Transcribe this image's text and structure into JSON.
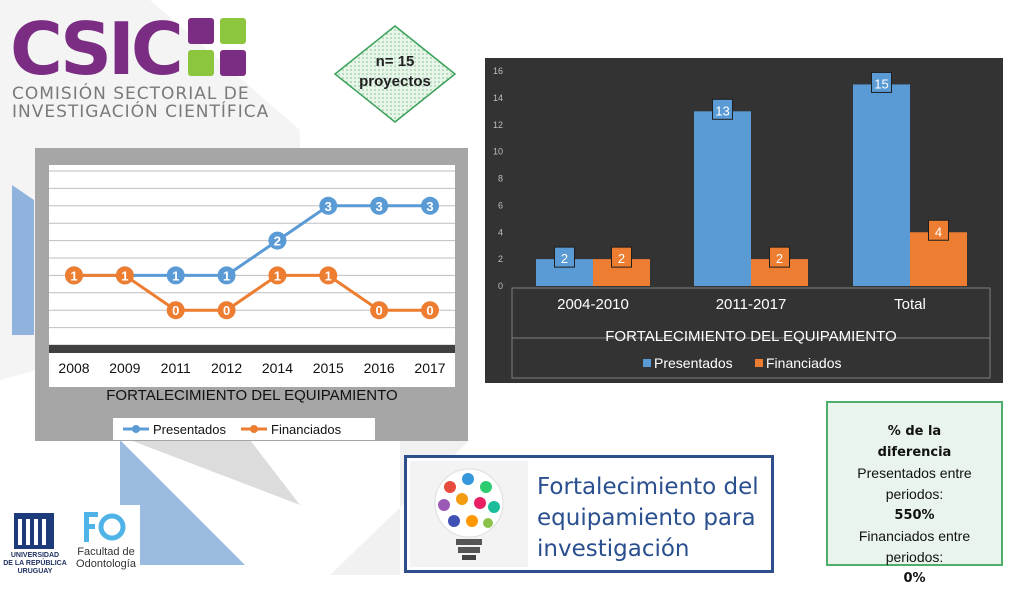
{
  "logo": {
    "brand": "CSIC",
    "subtitle_line1": "COMISIÓN SECTORIAL DE",
    "subtitle_line2": "INVESTIGACIÓN CIENTÍFICA"
  },
  "projects_note": {
    "line1": "n= 15",
    "line2": "proyectos"
  },
  "difference_box": {
    "heading_line1": "% de la",
    "heading_line2": "diferencia",
    "presentados_label": "Presentados entre periodos:",
    "presentados_value": "550%",
    "financiados_label": "Financiados entre periodos:",
    "financiados_value": "0%"
  },
  "title_box": {
    "line1": "Fortalecimiento del",
    "line2": "equipamiento para",
    "line3": "investigación"
  },
  "footer_logos": {
    "udelar_line1": "UNIVERSIDAD",
    "udelar_line2": "DE LA REPÚBLICA",
    "udelar_line3": "URUGUAY",
    "fo_line1": "Facultad de",
    "fo_line2": "Odontología"
  },
  "colors": {
    "presentados": "#5b9bd5",
    "financiados": "#ed7d31",
    "csic_purple": "#7b2c83",
    "csic_green": "#8cc63f",
    "title_blue": "#2a4f8f"
  },
  "chart_data": [
    {
      "type": "line",
      "title": "FORTALECIMIENTO DEL EQUIPAMIENTO",
      "categories": [
        "2008",
        "2009",
        "2011",
        "2012",
        "2014",
        "2015",
        "2016",
        "2017"
      ],
      "series": [
        {
          "name": "Presentados",
          "values": [
            1,
            1,
            1,
            1,
            2,
            3,
            3,
            3
          ]
        },
        {
          "name": "Financiados",
          "values": [
            1,
            1,
            0,
            0,
            1,
            1,
            0,
            0
          ]
        }
      ],
      "data_labels": [
        "1",
        "1",
        "1",
        "1",
        "2",
        "3",
        "3",
        "3",
        "1",
        "1",
        "0",
        "0",
        "1",
        "1",
        "0",
        "0"
      ],
      "ylim": [
        -1,
        4
      ],
      "grid": true,
      "legend": "bottom"
    },
    {
      "type": "bar",
      "title": "FORTALECIMIENTO DEL EQUIPAMIENTO",
      "categories": [
        "2004-2010",
        "2011-2017",
        "Total"
      ],
      "series": [
        {
          "name": "Presentados",
          "values": [
            2,
            13,
            15
          ]
        },
        {
          "name": "Financiados",
          "values": [
            2,
            2,
            4
          ]
        }
      ],
      "yticks": [
        "0",
        "2",
        "4",
        "6",
        "8",
        "10",
        "12",
        "14",
        "16"
      ],
      "ylim": [
        0,
        16
      ],
      "grid": false,
      "legend": "bottom"
    }
  ]
}
